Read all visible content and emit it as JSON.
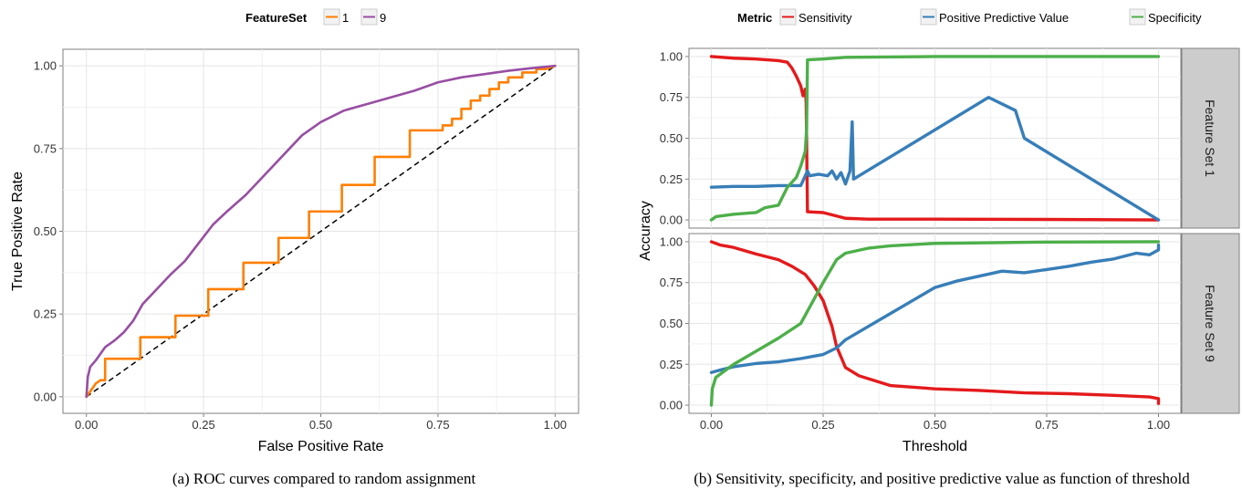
{
  "chart_data": [
    {
      "type": "line",
      "panel": "a",
      "caption": "(a) ROC curves compared to random assignment",
      "xlabel": "False Positive Rate",
      "ylabel": "True Positive Rate",
      "xlim": [
        -0.05,
        1.05
      ],
      "ylim": [
        -0.05,
        1.05
      ],
      "x_ticks": [
        "0.00",
        "0.25",
        "0.50",
        "0.75",
        "1.00"
      ],
      "y_ticks": [
        "0.00",
        "0.25",
        "0.50",
        "0.75",
        "1.00"
      ],
      "grid": true,
      "legend": {
        "title": "FeatureSet",
        "position": "top"
      },
      "reference_line": {
        "from": [
          0,
          0
        ],
        "to": [
          1,
          1
        ],
        "style": "dashed"
      },
      "series": [
        {
          "name": "1",
          "color": "#ff7f00",
          "points": [
            [
              0,
              0
            ],
            [
              0.01,
              0.02
            ],
            [
              0.02,
              0.04
            ],
            [
              0.03,
              0.05
            ],
            [
              0.04,
              0.05
            ],
            [
              0.04,
              0.115
            ],
            [
              0.115,
              0.115
            ],
            [
              0.115,
              0.18
            ],
            [
              0.19,
              0.18
            ],
            [
              0.19,
              0.245
            ],
            [
              0.26,
              0.245
            ],
            [
              0.26,
              0.325
            ],
            [
              0.335,
              0.325
            ],
            [
              0.335,
              0.405
            ],
            [
              0.41,
              0.405
            ],
            [
              0.41,
              0.48
            ],
            [
              0.475,
              0.48
            ],
            [
              0.475,
              0.56
            ],
            [
              0.545,
              0.56
            ],
            [
              0.545,
              0.64
            ],
            [
              0.615,
              0.64
            ],
            [
              0.615,
              0.725
            ],
            [
              0.69,
              0.725
            ],
            [
              0.69,
              0.805
            ],
            [
              0.76,
              0.805
            ],
            [
              0.76,
              0.82
            ],
            [
              0.78,
              0.82
            ],
            [
              0.78,
              0.84
            ],
            [
              0.8,
              0.84
            ],
            [
              0.8,
              0.87
            ],
            [
              0.82,
              0.87
            ],
            [
              0.82,
              0.895
            ],
            [
              0.84,
              0.895
            ],
            [
              0.84,
              0.91
            ],
            [
              0.86,
              0.91
            ],
            [
              0.86,
              0.93
            ],
            [
              0.88,
              0.93
            ],
            [
              0.88,
              0.95
            ],
            [
              0.9,
              0.95
            ],
            [
              0.9,
              0.965
            ],
            [
              0.93,
              0.965
            ],
            [
              0.93,
              0.98
            ],
            [
              0.96,
              0.98
            ],
            [
              0.96,
              0.99
            ],
            [
              0.98,
              0.99
            ],
            [
              1.0,
              1.0
            ]
          ]
        },
        {
          "name": "9",
          "color": "#984ea3",
          "points": [
            [
              0,
              0
            ],
            [
              0.003,
              0.06
            ],
            [
              0.008,
              0.09
            ],
            [
              0.02,
              0.11
            ],
            [
              0.04,
              0.15
            ],
            [
              0.06,
              0.17
            ],
            [
              0.08,
              0.195
            ],
            [
              0.1,
              0.23
            ],
            [
              0.12,
              0.28
            ],
            [
              0.15,
              0.325
            ],
            [
              0.18,
              0.37
            ],
            [
              0.21,
              0.41
            ],
            [
              0.24,
              0.465
            ],
            [
              0.27,
              0.52
            ],
            [
              0.3,
              0.56
            ],
            [
              0.34,
              0.61
            ],
            [
              0.38,
              0.67
            ],
            [
              0.42,
              0.73
            ],
            [
              0.46,
              0.79
            ],
            [
              0.5,
              0.83
            ],
            [
              0.55,
              0.865
            ],
            [
              0.6,
              0.885
            ],
            [
              0.65,
              0.905
            ],
            [
              0.7,
              0.925
            ],
            [
              0.75,
              0.95
            ],
            [
              0.8,
              0.965
            ],
            [
              0.85,
              0.975
            ],
            [
              0.9,
              0.985
            ],
            [
              0.95,
              0.993
            ],
            [
              1.0,
              1.0
            ]
          ]
        }
      ]
    },
    {
      "type": "line",
      "panel": "b",
      "caption": "(b) Sensitivity, specificity, and positive predictive value as function of threshold",
      "xlabel": "Threshold",
      "ylabel": "Accuracy",
      "xlim": [
        -0.05,
        1.05
      ],
      "ylim": [
        -0.05,
        1.05
      ],
      "x_ticks": [
        "0.00",
        "0.25",
        "0.50",
        "0.75",
        "1.00"
      ],
      "y_ticks": [
        "0.00",
        "0.25",
        "0.50",
        "0.75",
        "1.00"
      ],
      "grid": true,
      "legend": {
        "title": "Metric",
        "position": "top"
      },
      "series_meta": [
        {
          "name": "Sensitivity",
          "color": "#e41a1c"
        },
        {
          "name": "Positive Predictive Value",
          "color": "#377eb8"
        },
        {
          "name": "Specificity",
          "color": "#4daf4a"
        }
      ],
      "facets": [
        {
          "label": "Feature Set 1",
          "series": [
            {
              "name": "Sensitivity",
              "points": [
                [
                  0,
                  1.0
                ],
                [
                  0.05,
                  0.99
                ],
                [
                  0.1,
                  0.985
                ],
                [
                  0.15,
                  0.975
                ],
                [
                  0.17,
                  0.965
                ],
                [
                  0.18,
                  0.93
                ],
                [
                  0.19,
                  0.88
                ],
                [
                  0.2,
                  0.82
                ],
                [
                  0.205,
                  0.76
                ],
                [
                  0.21,
                  0.8
                ],
                [
                  0.212,
                  0.72
                ],
                [
                  0.215,
                  0.05
                ],
                [
                  0.25,
                  0.045
                ],
                [
                  0.3,
                  0.01
                ],
                [
                  0.35,
                  0.005
                ],
                [
                  0.5,
                  0.005
                ],
                [
                  0.75,
                  0.003
                ],
                [
                  1.0,
                  0.0
                ]
              ]
            },
            {
              "name": "Positive Predictive Value",
              "points": [
                [
                  0,
                  0.2
                ],
                [
                  0.05,
                  0.205
                ],
                [
                  0.1,
                  0.205
                ],
                [
                  0.15,
                  0.21
                ],
                [
                  0.2,
                  0.21
                ],
                [
                  0.215,
                  0.3
                ],
                [
                  0.22,
                  0.27
                ],
                [
                  0.24,
                  0.28
                ],
                [
                  0.26,
                  0.27
                ],
                [
                  0.27,
                  0.3
                ],
                [
                  0.28,
                  0.25
                ],
                [
                  0.29,
                  0.29
                ],
                [
                  0.3,
                  0.22
                ],
                [
                  0.31,
                  0.3
                ],
                [
                  0.315,
                  0.6
                ],
                [
                  0.318,
                  0.25
                ],
                [
                  0.62,
                  0.75
                ],
                [
                  0.68,
                  0.67
                ],
                [
                  0.7,
                  0.5
                ],
                [
                  1.0,
                  0.0
                ]
              ]
            },
            {
              "name": "Specificity",
              "points": [
                [
                  0,
                  0.0
                ],
                [
                  0.01,
                  0.02
                ],
                [
                  0.05,
                  0.035
                ],
                [
                  0.1,
                  0.045
                ],
                [
                  0.12,
                  0.075
                ],
                [
                  0.15,
                  0.09
                ],
                [
                  0.17,
                  0.2
                ],
                [
                  0.19,
                  0.26
                ],
                [
                  0.2,
                  0.33
                ],
                [
                  0.21,
                  0.42
                ],
                [
                  0.213,
                  0.55
                ],
                [
                  0.215,
                  0.98
                ],
                [
                  0.25,
                  0.985
                ],
                [
                  0.3,
                  0.995
                ],
                [
                  0.5,
                  1.0
                ],
                [
                  1.0,
                  1.0
                ]
              ]
            }
          ]
        },
        {
          "label": "Feature Set 9",
          "series": [
            {
              "name": "Sensitivity",
              "points": [
                [
                  0,
                  1.0
                ],
                [
                  0.02,
                  0.98
                ],
                [
                  0.05,
                  0.965
                ],
                [
                  0.1,
                  0.925
                ],
                [
                  0.15,
                  0.89
                ],
                [
                  0.18,
                  0.85
                ],
                [
                  0.21,
                  0.8
                ],
                [
                  0.23,
                  0.73
                ],
                [
                  0.25,
                  0.64
                ],
                [
                  0.27,
                  0.48
                ],
                [
                  0.28,
                  0.36
                ],
                [
                  0.3,
                  0.23
                ],
                [
                  0.33,
                  0.18
                ],
                [
                  0.4,
                  0.12
                ],
                [
                  0.5,
                  0.1
                ],
                [
                  0.6,
                  0.09
                ],
                [
                  0.7,
                  0.075
                ],
                [
                  0.8,
                  0.07
                ],
                [
                  0.9,
                  0.06
                ],
                [
                  0.98,
                  0.05
                ],
                [
                  1.0,
                  0.04
                ],
                [
                  1.0,
                  0.01
                ]
              ]
            },
            {
              "name": "Positive Predictive Value",
              "points": [
                [
                  0,
                  0.2
                ],
                [
                  0.02,
                  0.215
                ],
                [
                  0.05,
                  0.235
                ],
                [
                  0.1,
                  0.255
                ],
                [
                  0.15,
                  0.265
                ],
                [
                  0.2,
                  0.285
                ],
                [
                  0.25,
                  0.31
                ],
                [
                  0.28,
                  0.35
                ],
                [
                  0.3,
                  0.4
                ],
                [
                  0.35,
                  0.48
                ],
                [
                  0.4,
                  0.56
                ],
                [
                  0.45,
                  0.64
                ],
                [
                  0.5,
                  0.72
                ],
                [
                  0.55,
                  0.76
                ],
                [
                  0.6,
                  0.79
                ],
                [
                  0.65,
                  0.82
                ],
                [
                  0.7,
                  0.81
                ],
                [
                  0.75,
                  0.83
                ],
                [
                  0.8,
                  0.85
                ],
                [
                  0.85,
                  0.875
                ],
                [
                  0.9,
                  0.895
                ],
                [
                  0.95,
                  0.93
                ],
                [
                  0.98,
                  0.92
                ],
                [
                  1.0,
                  0.95
                ],
                [
                  1.0,
                  0.98
                ]
              ]
            },
            {
              "name": "Specificity",
              "points": [
                [
                  0,
                  0.0
                ],
                [
                  0.002,
                  0.1
                ],
                [
                  0.01,
                  0.17
                ],
                [
                  0.05,
                  0.25
                ],
                [
                  0.1,
                  0.33
                ],
                [
                  0.15,
                  0.41
                ],
                [
                  0.2,
                  0.5
                ],
                [
                  0.22,
                  0.6
                ],
                [
                  0.25,
                  0.75
                ],
                [
                  0.28,
                  0.89
                ],
                [
                  0.3,
                  0.93
                ],
                [
                  0.35,
                  0.96
                ],
                [
                  0.4,
                  0.975
                ],
                [
                  0.5,
                  0.99
                ],
                [
                  0.75,
                  0.998
                ],
                [
                  1.0,
                  1.0
                ]
              ]
            }
          ]
        }
      ]
    }
  ]
}
